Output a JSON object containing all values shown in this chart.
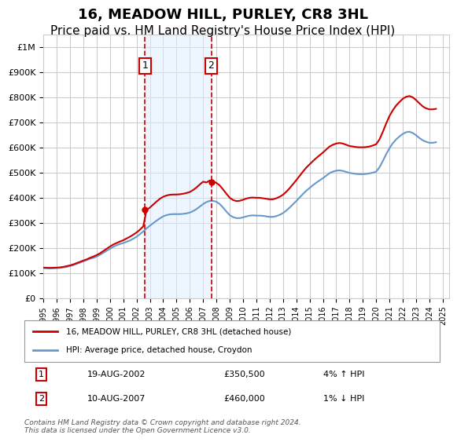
{
  "title": "16, MEADOW HILL, PURLEY, CR8 3HL",
  "subtitle": "Price paid vs. HM Land Registry's House Price Index (HPI)",
  "title_fontsize": 13,
  "subtitle_fontsize": 11,
  "ylabel": "",
  "ylim": [
    0,
    1050000
  ],
  "yticks": [
    0,
    100000,
    200000,
    300000,
    400000,
    500000,
    600000,
    700000,
    800000,
    900000,
    1000000
  ],
  "ytick_labels": [
    "£0",
    "£100K",
    "£200K",
    "£300K",
    "£400K",
    "£500K",
    "£600K",
    "£700K",
    "£800K",
    "£900K",
    "£1M"
  ],
  "xlim_start": 1995.0,
  "xlim_end": 2025.5,
  "xtick_years": [
    1995,
    1996,
    1997,
    1998,
    1999,
    2000,
    2001,
    2002,
    2003,
    2004,
    2005,
    2006,
    2007,
    2008,
    2009,
    2010,
    2011,
    2012,
    2013,
    2014,
    2015,
    2016,
    2017,
    2018,
    2019,
    2020,
    2021,
    2022,
    2023,
    2024,
    2025
  ],
  "hpi_color": "#6699cc",
  "price_color": "#cc0000",
  "shade_color": "#ddeeff",
  "shade_alpha": 0.5,
  "grid_color": "#cccccc",
  "background_color": "#ffffff",
  "transaction1_x": 2002.63,
  "transaction1_y": 350500,
  "transaction1_label": "1",
  "transaction1_date": "19-AUG-2002",
  "transaction1_price": "£350,500",
  "transaction1_hpi": "4% ↑ HPI",
  "transaction2_x": 2007.61,
  "transaction2_y": 460000,
  "transaction2_label": "2",
  "transaction2_date": "10-AUG-2007",
  "transaction2_price": "£460,000",
  "transaction2_hpi": "1% ↓ HPI",
  "legend_line1": "16, MEADOW HILL, PURLEY, CR8 3HL (detached house)",
  "legend_line2": "HPI: Average price, detached house, Croydon",
  "footer": "Contains HM Land Registry data © Crown copyright and database right 2024.\nThis data is licensed under the Open Government Licence v3.0.",
  "hpi_x": [
    1995.0,
    1995.25,
    1995.5,
    1995.75,
    1996.0,
    1996.25,
    1996.5,
    1996.75,
    1997.0,
    1997.25,
    1997.5,
    1997.75,
    1998.0,
    1998.25,
    1998.5,
    1998.75,
    1999.0,
    1999.25,
    1999.5,
    1999.75,
    2000.0,
    2000.25,
    2000.5,
    2000.75,
    2001.0,
    2001.25,
    2001.5,
    2001.75,
    2002.0,
    2002.25,
    2002.5,
    2002.75,
    2003.0,
    2003.25,
    2003.5,
    2003.75,
    2004.0,
    2004.25,
    2004.5,
    2004.75,
    2005.0,
    2005.25,
    2005.5,
    2005.75,
    2006.0,
    2006.25,
    2006.5,
    2006.75,
    2007.0,
    2007.25,
    2007.5,
    2007.75,
    2008.0,
    2008.25,
    2008.5,
    2008.75,
    2009.0,
    2009.25,
    2009.5,
    2009.75,
    2010.0,
    2010.25,
    2010.5,
    2010.75,
    2011.0,
    2011.25,
    2011.5,
    2011.75,
    2012.0,
    2012.25,
    2012.5,
    2012.75,
    2013.0,
    2013.25,
    2013.5,
    2013.75,
    2014.0,
    2014.25,
    2014.5,
    2014.75,
    2015.0,
    2015.25,
    2015.5,
    2015.75,
    2016.0,
    2016.25,
    2016.5,
    2016.75,
    2017.0,
    2017.25,
    2017.5,
    2017.75,
    2018.0,
    2018.25,
    2018.5,
    2018.75,
    2019.0,
    2019.25,
    2019.5,
    2019.75,
    2020.0,
    2020.25,
    2020.5,
    2020.75,
    2021.0,
    2021.25,
    2021.5,
    2021.75,
    2022.0,
    2022.25,
    2022.5,
    2022.75,
    2023.0,
    2023.25,
    2023.5,
    2023.75,
    2024.0,
    2024.25,
    2024.5
  ],
  "hpi_y": [
    119000,
    118500,
    118000,
    118500,
    119000,
    120000,
    122000,
    124000,
    127000,
    131000,
    136000,
    141000,
    146000,
    151000,
    156000,
    160000,
    165000,
    172000,
    180000,
    188000,
    196000,
    204000,
    210000,
    215000,
    219000,
    224000,
    229000,
    236000,
    244000,
    254000,
    265000,
    277000,
    288000,
    298000,
    308000,
    317000,
    325000,
    330000,
    333000,
    334000,
    334000,
    334000,
    335000,
    337000,
    340000,
    346000,
    354000,
    364000,
    374000,
    382000,
    387000,
    387000,
    383000,
    374000,
    360000,
    344000,
    330000,
    322000,
    318000,
    318000,
    321000,
    325000,
    328000,
    329000,
    328000,
    328000,
    327000,
    325000,
    323000,
    323000,
    326000,
    331000,
    338000,
    348000,
    360000,
    373000,
    386000,
    400000,
    414000,
    427000,
    438000,
    449000,
    459000,
    468000,
    477000,
    487000,
    497000,
    503000,
    507000,
    508000,
    506000,
    502000,
    498000,
    496000,
    494000,
    493000,
    493000,
    494000,
    496000,
    499000,
    503000,
    520000,
    545000,
    572000,
    596000,
    616000,
    631000,
    643000,
    653000,
    660000,
    662000,
    657000,
    648000,
    637000,
    628000,
    622000,
    618000,
    618000,
    620000
  ],
  "price_x": [
    1995.0,
    1995.25,
    1995.5,
    1995.75,
    1996.0,
    1996.25,
    1996.5,
    1996.75,
    1997.0,
    1997.25,
    1997.5,
    1997.75,
    1998.0,
    1998.25,
    1998.5,
    1998.75,
    1999.0,
    1999.25,
    1999.5,
    1999.75,
    2000.0,
    2000.25,
    2000.5,
    2000.75,
    2001.0,
    2001.25,
    2001.5,
    2001.75,
    2002.0,
    2002.25,
    2002.5,
    2002.75,
    2003.0,
    2003.25,
    2003.5,
    2003.75,
    2004.0,
    2004.25,
    2004.5,
    2004.75,
    2005.0,
    2005.25,
    2005.5,
    2005.75,
    2006.0,
    2006.25,
    2006.5,
    2006.75,
    2007.0,
    2007.25,
    2007.5,
    2007.75,
    2008.0,
    2008.25,
    2008.5,
    2008.75,
    2009.0,
    2009.25,
    2009.5,
    2009.75,
    2010.0,
    2010.25,
    2010.5,
    2010.75,
    2011.0,
    2011.25,
    2011.5,
    2011.75,
    2012.0,
    2012.25,
    2012.5,
    2012.75,
    2013.0,
    2013.25,
    2013.5,
    2013.75,
    2014.0,
    2014.25,
    2014.5,
    2014.75,
    2015.0,
    2015.25,
    2015.5,
    2015.75,
    2016.0,
    2016.25,
    2016.5,
    2016.75,
    2017.0,
    2017.25,
    2017.5,
    2017.75,
    2018.0,
    2018.25,
    2018.5,
    2018.75,
    2019.0,
    2019.25,
    2019.5,
    2019.75,
    2020.0,
    2020.25,
    2020.5,
    2020.75,
    2021.0,
    2021.25,
    2021.5,
    2021.75,
    2022.0,
    2022.25,
    2022.5,
    2022.75,
    2023.0,
    2023.25,
    2023.5,
    2023.75,
    2024.0,
    2024.25,
    2024.5
  ],
  "price_y": [
    121000,
    120500,
    120000,
    120500,
    121000,
    122000,
    124000,
    127000,
    130000,
    134000,
    139000,
    144000,
    149000,
    154000,
    160000,
    165000,
    171000,
    178000,
    187000,
    196000,
    205000,
    213000,
    219000,
    225000,
    230000,
    237000,
    244000,
    252000,
    261000,
    272000,
    285000,
    350500,
    360000,
    372000,
    384000,
    395000,
    403000,
    408000,
    411000,
    412000,
    412000,
    413000,
    415000,
    418000,
    422000,
    430000,
    440000,
    452000,
    463000,
    460000,
    468000,
    465000,
    458000,
    448000,
    432000,
    415000,
    399000,
    390000,
    386000,
    387000,
    391000,
    396000,
    399000,
    400000,
    399000,
    399000,
    397000,
    395000,
    393000,
    393000,
    397000,
    403000,
    411000,
    423000,
    437000,
    453000,
    469000,
    486000,
    503000,
    519000,
    532000,
    545000,
    557000,
    568000,
    579000,
    591000,
    603000,
    610000,
    615000,
    617000,
    615000,
    610000,
    605000,
    603000,
    601000,
    600000,
    600000,
    601000,
    603000,
    607000,
    612000,
    631000,
    661000,
    694000,
    724000,
    747000,
    766000,
    780000,
    793000,
    801000,
    804000,
    799000,
    788000,
    775000,
    763000,
    755000,
    751000,
    751000,
    753000
  ]
}
